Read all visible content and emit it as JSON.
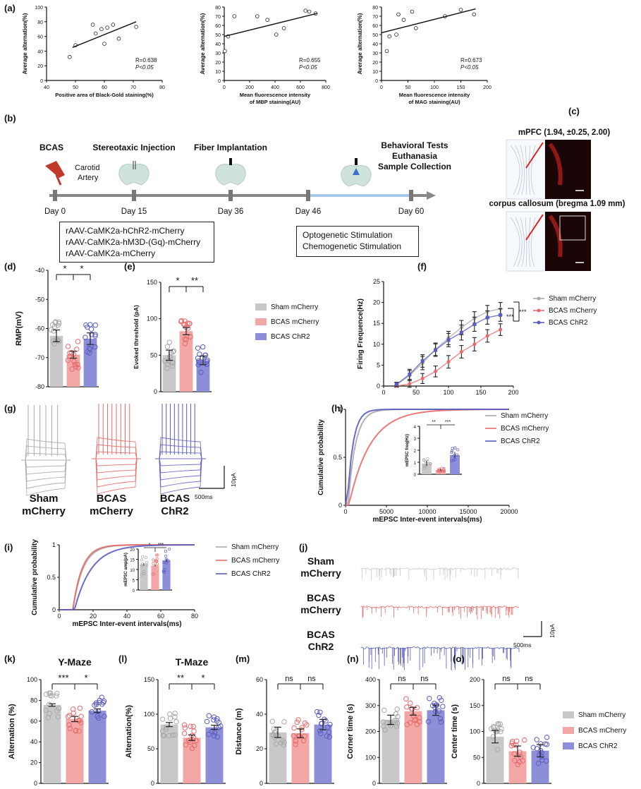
{
  "colors": {
    "sham": "#c8c8c8",
    "sham_dot": "#a8a8a8",
    "bcas": "#f2a6a6",
    "bcas_dot": "#e86a6a",
    "chr2": "#8d8ed8",
    "chr2_dot": "#5b5cc0",
    "timeline": "#888888",
    "timeline_blue": "#a9c7ea"
  },
  "panel_labels": {
    "a": "(a)",
    "b": "(b)",
    "c": "(c)",
    "d": "(d)",
    "e": "(e)",
    "f": "(f)",
    "g": "(g)",
    "h": "(h)",
    "i": "(i)",
    "j": "(j)",
    "k": "(k)",
    "l": "(l)",
    "m": "(m)",
    "n": "(n)",
    "o": "(o)"
  },
  "legend": {
    "sham": "Sham mCherry",
    "bcas": "BCAS mCherry",
    "chr2": "BCAS ChR2"
  },
  "timeline": {
    "days": [
      "Day 0",
      "Day 15",
      "Day 36",
      "Day 46",
      "Day 60"
    ],
    "events": [
      "BCAS",
      "Stereotaxic Injection",
      "Fiber Implantation"
    ],
    "behavior": [
      "Behavioral Tests",
      "Euthanasia",
      "Sample Collection"
    ],
    "carotid": [
      "Carotid",
      "Artery"
    ],
    "virus_box": [
      "rAAV-CaMK2a-hChR2-mCherry",
      "rAAV-CaMK2a-hM3D-(Gq)-mCherry",
      "rAAV-CaMK2a-mCherry"
    ],
    "stim_box": [
      "Optogenetic Stimulation",
      "Chemogenetic Stimulation"
    ]
  },
  "panel_c": {
    "title1": "mPFC (1.94, ±0.25, 2.00)",
    "title2": "corpus callosum (bregma 1.09 mm)"
  },
  "panel_g": {
    "groups": [
      [
        "Sham",
        "mCherry"
      ],
      [
        "BCAS",
        "mCherry"
      ],
      [
        "BCAS",
        "ChR2"
      ]
    ],
    "scale_x": "500ms",
    "scale_y": "10pA"
  },
  "panel_j": {
    "groups": [
      [
        "Sham",
        "mCherry"
      ],
      [
        "BCAS",
        "mCherry"
      ],
      [
        "BCAS",
        "ChR2"
      ]
    ],
    "scale_x": "500ms",
    "scale_y": "10pA"
  },
  "chart_data": [
    {
      "id": "a1",
      "type": "scatter",
      "xlabel": "Positive area of Black-Gold staining(%)",
      "ylabel": "Average alternation(%)",
      "xlim": [
        40,
        80
      ],
      "ylim": [
        0,
        100
      ],
      "xticks": [
        40,
        50,
        60,
        70,
        80
      ],
      "yticks": [
        0,
        20,
        40,
        60,
        80,
        100
      ],
      "points": [
        [
          48,
          32
        ],
        [
          50,
          48
        ],
        [
          56,
          76
        ],
        [
          57,
          64
        ],
        [
          59,
          70
        ],
        [
          60,
          50
        ],
        [
          61,
          72
        ],
        [
          63,
          76
        ],
        [
          65,
          57
        ],
        [
          71,
          73
        ]
      ],
      "fit": [
        [
          49,
          45
        ],
        [
          71,
          80
        ]
      ],
      "r_text": "R=0.638",
      "p_text": "P<0.05"
    },
    {
      "id": "a2",
      "type": "scatter",
      "xlabel": "Mean fluorescence intensity",
      "xlabel2": "of MBP staining(AU)",
      "ylabel": "Average alternation(%)",
      "xlim": [
        0,
        800
      ],
      "ylim": [
        0,
        80
      ],
      "xticks": [
        0,
        200,
        400,
        600,
        800
      ],
      "yticks": [
        0,
        10,
        20,
        30,
        40,
        50,
        60,
        70,
        80
      ],
      "points": [
        [
          5,
          32
        ],
        [
          30,
          48
        ],
        [
          80,
          70
        ],
        [
          260,
          70
        ],
        [
          340,
          66
        ],
        [
          410,
          50
        ],
        [
          470,
          57
        ],
        [
          640,
          76
        ],
        [
          670,
          75
        ],
        [
          720,
          73
        ]
      ],
      "fit": [
        [
          0,
          48
        ],
        [
          730,
          73
        ]
      ],
      "r_text": "R=0.655",
      "p_text": "P<0.05"
    },
    {
      "id": "a3",
      "type": "scatter",
      "xlabel": "Mean fluorescence intensity",
      "xlabel2": "of MAG staining(AU)",
      "ylabel": "Average alternation(%)",
      "xlim": [
        0,
        200
      ],
      "ylim": [
        0,
        80
      ],
      "xticks": [
        0,
        50,
        100,
        150,
        200
      ],
      "yticks": [
        0,
        10,
        20,
        30,
        40,
        50,
        60,
        70,
        80
      ],
      "points": [
        [
          10,
          32
        ],
        [
          15,
          48
        ],
        [
          28,
          50
        ],
        [
          32,
          72
        ],
        [
          42,
          66
        ],
        [
          58,
          75
        ],
        [
          65,
          57
        ],
        [
          120,
          70
        ],
        [
          150,
          77
        ],
        [
          175,
          72
        ]
      ],
      "fit": [
        [
          0,
          52
        ],
        [
          178,
          78
        ]
      ],
      "r_text": "R=0.673",
      "p_text": "P<0.05"
    },
    {
      "id": "d",
      "type": "bar",
      "ylabel": "RMP(mV)",
      "ylim": [
        -80,
        -40
      ],
      "yticks": [
        -80,
        -70,
        -60,
        -50,
        -40
      ],
      "values": [
        -62.5,
        -69,
        -63.5
      ],
      "errors": [
        2.0,
        1.2,
        2.0
      ],
      "sig": [
        "*",
        "*"
      ]
    },
    {
      "id": "e",
      "type": "bar",
      "ylabel": "Evoked threshold (pA)",
      "ylim": [
        0,
        150
      ],
      "yticks": [
        0,
        50,
        100,
        150
      ],
      "values": [
        50,
        83,
        43
      ],
      "errors": [
        7,
        5,
        6
      ],
      "sig": [
        "*",
        "**"
      ]
    },
    {
      "id": "f",
      "type": "line",
      "xlabel": "",
      "ylabel": "Firing Frequence(Hz)",
      "xlim": [
        0,
        200
      ],
      "ylim": [
        0,
        25
      ],
      "xticks": [
        0,
        50,
        100,
        150,
        200
      ],
      "yticks": [
        0,
        5,
        10,
        15,
        20,
        25
      ],
      "x": [
        20,
        40,
        60,
        80,
        100,
        120,
        140,
        160,
        180
      ],
      "series": [
        {
          "name": "Sham mCherry",
          "values": [
            0.3,
            2.5,
            5.5,
            8.8,
            11.5,
            14,
            16.2,
            17.8,
            18.5
          ],
          "errors": [
            0.5,
            1.2,
            1.6,
            1.5,
            1.6,
            1.7,
            1.6,
            1.5,
            1.5
          ]
        },
        {
          "name": "BCAS mCherry",
          "values": [
            0,
            0.5,
            1.8,
            3.5,
            5.8,
            8.2,
            10,
            12,
            13.5
          ],
          "errors": [
            0.3,
            0.8,
            1.2,
            1.3,
            1.5,
            1.5,
            1.6,
            1.5,
            1.4
          ]
        },
        {
          "name": "BCAS ChR2",
          "values": [
            0.4,
            2.8,
            6,
            8.6,
            11,
            12.8,
            14.8,
            16.4,
            17
          ],
          "errors": [
            0.5,
            1.2,
            1.5,
            1.5,
            1.6,
            1.8,
            1.7,
            1.6,
            1.5
          ]
        }
      ],
      "sig": [
        "***",
        "***"
      ]
    },
    {
      "id": "h",
      "type": "line",
      "xlabel": "mEPSC Inter-event intervals(ms)",
      "ylabel": "Cumulative probability",
      "xlim": [
        0,
        20000
      ],
      "ylim": [
        0,
        1
      ],
      "xticks": [
        0,
        5000,
        10000,
        15000,
        20000
      ],
      "yticks": [
        0,
        0.5,
        1.0
      ],
      "inset": {
        "ylabel": "mEPSC freq(Hz)",
        "ylim": [
          0,
          4
        ],
        "yticks": [
          0,
          1,
          2,
          3,
          4
        ],
        "values": [
          0.9,
          0.35,
          1.6
        ],
        "errors": [
          0.2,
          0.1,
          0.25
        ],
        "sig": [
          "**",
          "***"
        ]
      }
    },
    {
      "id": "i",
      "type": "line",
      "xlabel": "mEPSC Inter-event intervals(ms)",
      "ylabel": "Cumulative probability",
      "xlim": [
        0,
        80
      ],
      "ylim": [
        0,
        1
      ],
      "xticks": [
        0,
        20,
        40,
        60,
        80
      ],
      "yticks": [
        0,
        0.5,
        1.0
      ],
      "inset": {
        "ylabel": "mEPSC amp(pA)",
        "ylim": [
          0,
          20
        ],
        "yticks": [
          0,
          5,
          10,
          15,
          20
        ],
        "values": [
          12.5,
          12,
          14.5
        ],
        "errors": [
          0.6,
          0.5,
          0.7
        ],
        "sig": [
          "*",
          "***"
        ]
      }
    },
    {
      "id": "k",
      "type": "bar",
      "title": "Y-Maze",
      "ylabel": "Alternation (%)",
      "ylim": [
        0,
        100
      ],
      "yticks": [
        0,
        20,
        40,
        60,
        80,
        100
      ],
      "values": [
        75.5,
        62,
        70
      ],
      "errors": [
        1.2,
        2.5,
        1.8
      ],
      "sig": [
        "***",
        "*"
      ]
    },
    {
      "id": "l",
      "type": "bar",
      "title": "T-Maze",
      "ylabel": "Alternation(%)",
      "ylim": [
        0,
        150
      ],
      "yticks": [
        0,
        50,
        100,
        150
      ],
      "values": [
        85,
        66,
        81
      ],
      "errors": [
        3,
        4,
        3
      ],
      "sig": [
        "**",
        "*"
      ]
    },
    {
      "id": "m",
      "type": "bar",
      "ylabel": "Distance (m)",
      "ylim": [
        0,
        60
      ],
      "yticks": [
        0,
        20,
        40,
        60
      ],
      "values": [
        29.5,
        29,
        34
      ],
      "errors": [
        3,
        2.5,
        3
      ],
      "sig": [
        "ns",
        "ns"
      ]
    },
    {
      "id": "n",
      "type": "bar",
      "ylabel": "Corner time (s)",
      "ylim": [
        0,
        400
      ],
      "yticks": [
        0,
        100,
        200,
        300,
        400
      ],
      "values": [
        245,
        278,
        282
      ],
      "errors": [
        18,
        15,
        20
      ],
      "sig": [
        "ns",
        "ns"
      ]
    },
    {
      "id": "o",
      "type": "bar",
      "ylabel": "Center time (s)",
      "ylim": [
        0,
        200
      ],
      "yticks": [
        0,
        50,
        100,
        150,
        200
      ],
      "values": [
        90,
        62,
        63
      ],
      "errors": [
        12,
        10,
        12
      ],
      "sig": [
        "ns",
        "ns"
      ]
    }
  ]
}
